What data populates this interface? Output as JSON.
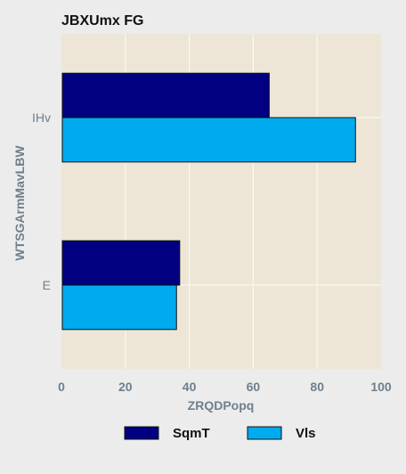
{
  "chart_data": {
    "type": "bar",
    "orientation": "horizontal",
    "title": "JBXUmx FG",
    "xlabel": "ZRQDPopq",
    "ylabel": "WTSGArmMavLBW",
    "categories": [
      "IHv",
      "E"
    ],
    "series": [
      {
        "name": "SqmT",
        "color": "#000080",
        "values": [
          65,
          37
        ]
      },
      {
        "name": "Vls",
        "color": "#00aaee",
        "values": [
          92,
          36
        ]
      }
    ],
    "xlim": [
      0,
      100
    ],
    "xticks": [
      "0",
      "20",
      "40",
      "60",
      "80",
      "100"
    ],
    "grid": true,
    "legend_position": "bottom"
  },
  "style": {
    "page_background": "#ececec",
    "plot_background": "#ede6d6",
    "grid_color": "#fbf8f0",
    "title_color": "#111111",
    "axis_text_color": "#6f7f8c",
    "tick_label_color": "#6f7f8c"
  }
}
